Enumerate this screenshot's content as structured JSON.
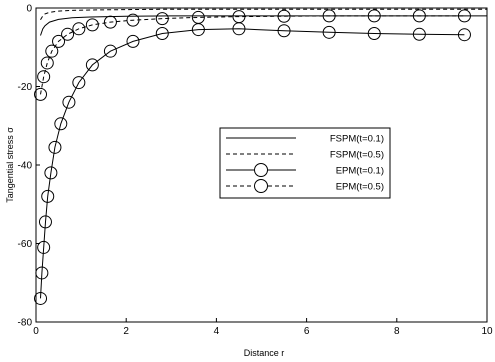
{
  "chart_data": {
    "type": "line",
    "xlabel": "Distance r",
    "ylabel": "Tangential stress σ",
    "xlim": [
      0,
      10
    ],
    "ylim": [
      -80,
      0
    ],
    "x_ticks": [
      0,
      2,
      4,
      6,
      8,
      10
    ],
    "x_tick_labels": [
      "0",
      "2",
      "4",
      "6",
      "8",
      "10"
    ],
    "y_ticks": [
      0,
      -20,
      -40,
      -60,
      -80
    ],
    "y_tick_labels": [
      "0",
      "-20",
      "-40",
      "-60",
      "-80"
    ],
    "grid": false,
    "legend_position": "right-center",
    "series": [
      {
        "name": "FSPM(t=0.1)",
        "line_style": "solid",
        "marker": "none",
        "x": [
          0.1,
          0.15,
          0.2,
          0.3,
          0.5,
          0.8,
          1.2,
          2,
          3,
          4,
          5,
          6,
          7,
          8,
          9,
          10
        ],
        "y": [
          -7.0,
          -5.3,
          -4.5,
          -3.6,
          -2.9,
          -2.5,
          -2.3,
          -2.1,
          -2.0,
          -2.0,
          -2.0,
          -2.0,
          -2.0,
          -2.0,
          -2.0,
          -2.0
        ]
      },
      {
        "name": "FSPM(t=0.5)",
        "line_style": "dashed",
        "marker": "none",
        "x": [
          0.1,
          0.15,
          0.2,
          0.3,
          0.5,
          0.8,
          1.2,
          2,
          3,
          4,
          5,
          6,
          7,
          8,
          9,
          10
        ],
        "y": [
          -3.0,
          -2.0,
          -1.5,
          -1.1,
          -0.8,
          -0.6,
          -0.5,
          -0.4,
          -0.3,
          -0.3,
          -0.3,
          -0.3,
          -0.3,
          -0.3,
          -0.3,
          -0.3
        ]
      },
      {
        "name": "EPM(t=0.1)",
        "line_style": "solid",
        "marker": "circle",
        "x": [
          0.1,
          0.13,
          0.17,
          0.21,
          0.26,
          0.33,
          0.42,
          0.55,
          0.73,
          0.95,
          1.25,
          1.65,
          2.15,
          2.8,
          3.6,
          4.5,
          5.5,
          6.5,
          7.5,
          8.5,
          9.5
        ],
        "y": [
          -74,
          -67.5,
          -61,
          -54.5,
          -48,
          -42,
          -35.5,
          -29.5,
          -24,
          -19,
          -14.5,
          -11,
          -8.5,
          -6.5,
          -5.5,
          -5.3,
          -5.8,
          -6.2,
          -6.5,
          -6.7,
          -6.8
        ]
      },
      {
        "name": "EPM(t=0.5)",
        "line_style": "dashed",
        "marker": "circle",
        "x": [
          0.1,
          0.17,
          0.25,
          0.35,
          0.5,
          0.7,
          0.95,
          1.25,
          1.65,
          2.15,
          2.8,
          3.6,
          4.5,
          5.5,
          6.5,
          7.5,
          8.5,
          9.5
        ],
        "y": [
          -22,
          -17.5,
          -14,
          -11,
          -8.5,
          -6.7,
          -5.3,
          -4.3,
          -3.6,
          -3.1,
          -2.7,
          -2.4,
          -2.2,
          -2.1,
          -2.0,
          -2.0,
          -2.0,
          -2.0
        ]
      }
    ]
  }
}
